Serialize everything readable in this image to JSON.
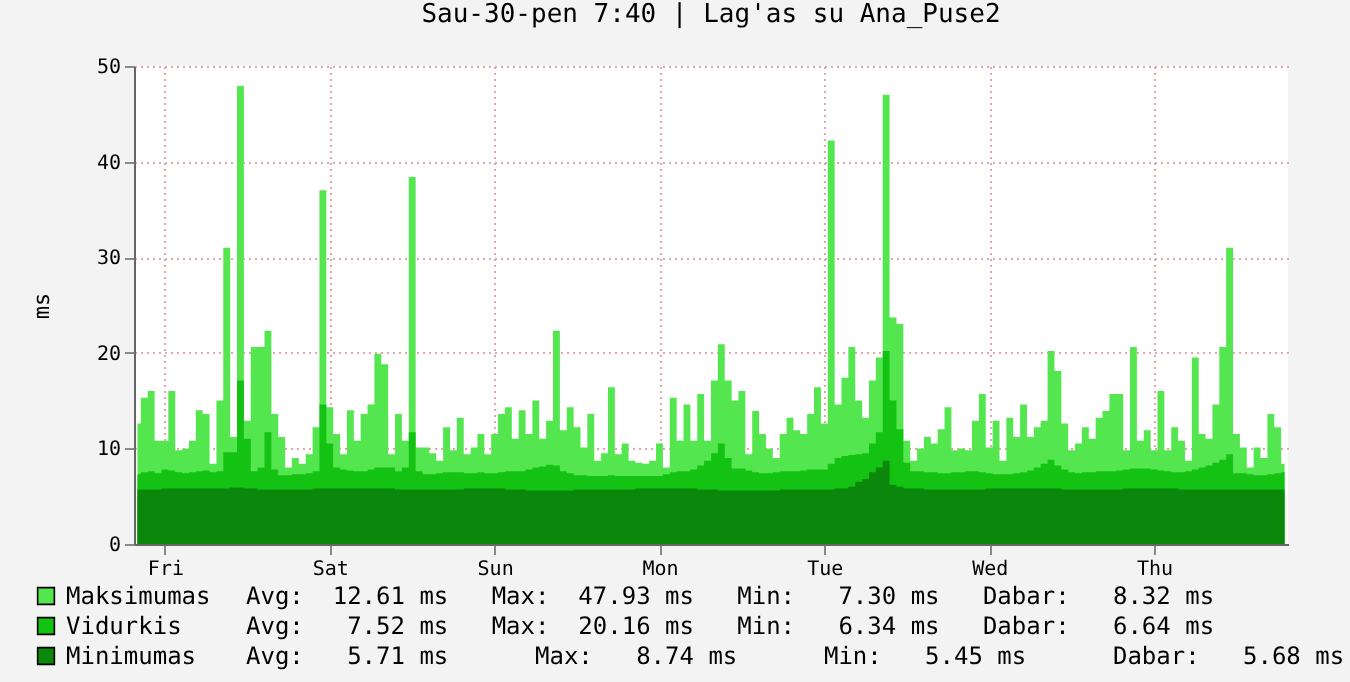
{
  "chart_data": {
    "type": "area",
    "title": "Sau-30-pen 7:40 | Lag'as su Ana_Puse2",
    "ylabel": "ms",
    "ylim": [
      0,
      50
    ],
    "yticks": [
      0,
      10,
      20,
      30,
      40,
      50
    ],
    "categories": [
      null,
      null,
      null,
      null,
      "Fri",
      null,
      null,
      null,
      null,
      null,
      null,
      null,
      null,
      null,
      null,
      null,
      null,
      null,
      null,
      null,
      null,
      null,
      null,
      null,
      null,
      null,
      null,
      null,
      "Sat",
      null,
      null,
      null,
      null,
      null,
      null,
      null,
      null,
      null,
      null,
      null,
      null,
      null,
      null,
      null,
      null,
      null,
      null,
      null,
      null,
      null,
      null,
      null,
      "Sun",
      null,
      null,
      null,
      null,
      null,
      null,
      null,
      null,
      null,
      null,
      null,
      null,
      null,
      null,
      null,
      null,
      null,
      null,
      null,
      null,
      null,
      null,
      null,
      "Mon",
      null,
      null,
      null,
      null,
      null,
      null,
      null,
      null,
      null,
      null,
      null,
      null,
      null,
      null,
      null,
      null,
      null,
      null,
      null,
      null,
      null,
      null,
      null,
      "Tue",
      null,
      null,
      null,
      null,
      null,
      null,
      null,
      null,
      null,
      null,
      null,
      null,
      null,
      null,
      null,
      null,
      null,
      null,
      null,
      null,
      null,
      null,
      null,
      "Wed",
      null,
      null,
      null,
      null,
      null,
      null,
      null,
      null,
      null,
      null,
      null,
      null,
      null,
      null,
      null,
      null,
      null,
      null,
      null,
      null,
      null,
      null,
      null,
      "Thu",
      null,
      null,
      null,
      null,
      null,
      null,
      null,
      null,
      null,
      null,
      null,
      null,
      null,
      null,
      null,
      null,
      null,
      null,
      null
    ],
    "grid": true,
    "legend": "bottom",
    "series": [
      {
        "name": "Maksimumas",
        "color": "#54e64e",
        "values": [
          12.6,
          15.3,
          16,
          10.8,
          10.8,
          16,
          9.8,
          10,
          10.8,
          14,
          13.6,
          8.4,
          15,
          31,
          11.2,
          47.9,
          12.9,
          20.6,
          20.6,
          22.3,
          13.6,
          11.2,
          8,
          9,
          8.4,
          9.4,
          12.2,
          37,
          14.3,
          11.5,
          9.4,
          14,
          10.8,
          13.6,
          14.6,
          19.9,
          18.8,
          9.4,
          13.6,
          10.8,
          38.4,
          10.1,
          10.1,
          9.5,
          8.7,
          12.2,
          9.8,
          13.2,
          9.4,
          10.1,
          11.5,
          9.4,
          11.5,
          13.6,
          14.3,
          11,
          14,
          11.5,
          15,
          11,
          12.9,
          22.3,
          11.9,
          14.3,
          12.2,
          10.1,
          13.6,
          8.7,
          9.5,
          16.4,
          9.4,
          10.5,
          8.7,
          8.5,
          8.4,
          8.7,
          10.5,
          8,
          15.3,
          10.8,
          14.6,
          10.8,
          15.7,
          10.8,
          17.1,
          20.9,
          17.1,
          15,
          16,
          9.4,
          13.9,
          11.5,
          10,
          9,
          11.5,
          13.2,
          11.9,
          11.5,
          13.6,
          16.4,
          12.6,
          42.2,
          14.6,
          17.4,
          20.6,
          15,
          13.2,
          17.1,
          19.5,
          47,
          23.7,
          23,
          10.8,
          8.7,
          10,
          11.2,
          10.5,
          12,
          14.3,
          9.8,
          10,
          9.8,
          12.9,
          15.7,
          10.1,
          12.9,
          8.7,
          13.2,
          11.2,
          14.6,
          11.2,
          12.2,
          12.9,
          20.2,
          18.1,
          12.6,
          9.8,
          10.5,
          12.2,
          11,
          13.2,
          13.9,
          15.7,
          15.7,
          9.8,
          20.6,
          10.8,
          11.9,
          9.8,
          16,
          9.8,
          12.2,
          10.8,
          8.7,
          19.5,
          11.5,
          11,
          14.6,
          20.6,
          31,
          11.5,
          10.1,
          8,
          10.1,
          9,
          13.6,
          12.2,
          8.4
        ]
      },
      {
        "name": "Vidurkis",
        "color": "#14c214",
        "values": [
          7.3,
          7.5,
          7.6,
          7.4,
          7.8,
          7.7,
          7.5,
          7.4,
          7.5,
          7.6,
          7.7,
          7.5,
          7.6,
          9.6,
          9.6,
          17.1,
          11,
          7.6,
          8,
          11.7,
          7.8,
          7.2,
          7.2,
          7.3,
          7.3,
          7.4,
          7.6,
          14.6,
          10.5,
          8,
          7.8,
          7.7,
          7.6,
          7.6,
          7.8,
          8,
          8,
          8,
          7.6,
          8,
          11.7,
          7.6,
          7.3,
          7.3,
          7.4,
          7.5,
          7.5,
          7.5,
          7.4,
          7.4,
          7.5,
          7.4,
          7.4,
          7.5,
          7.6,
          7.6,
          7.6,
          7.8,
          8,
          8.1,
          8.3,
          8.2,
          7.6,
          7.4,
          7.2,
          7.2,
          7.1,
          7.1,
          7.1,
          7.2,
          7.1,
          7.1,
          7.1,
          7.1,
          7.1,
          7.1,
          7.1,
          7.3,
          7.5,
          7.6,
          7.6,
          7.8,
          8.2,
          8.7,
          9.5,
          10.5,
          9,
          7.9,
          7.9,
          7.7,
          7.5,
          7.4,
          7.4,
          7.5,
          7.6,
          7.6,
          7.6,
          7.7,
          7.8,
          7.8,
          7.8,
          8.4,
          9,
          9.2,
          9.3,
          9.4,
          9.5,
          10.5,
          11.7,
          20.2,
          15,
          12,
          8.5,
          7.6,
          7.6,
          7.5,
          7.5,
          7.4,
          7.4,
          7.5,
          7.5,
          7.6,
          7.6,
          7.5,
          7.4,
          7.3,
          7.3,
          7.3,
          7.4,
          7.5,
          7.7,
          8,
          8.4,
          8.8,
          8.2,
          7.8,
          7.5,
          7.4,
          7.5,
          7.5,
          7.6,
          7.6,
          7.6,
          7.7,
          7.8,
          7.9,
          7.9,
          7.9,
          7.8,
          7.7,
          7.6,
          7.5,
          7.5,
          7.6,
          7.8,
          8,
          8.2,
          8.5,
          8.8,
          9.4,
          7.4,
          7.4,
          7.3,
          7.2,
          7.2,
          7.3,
          7.4,
          7.5
        ]
      },
      {
        "name": "Minimumas",
        "color": "#0b880b",
        "values": [
          5.7,
          5.7,
          5.7,
          5.7,
          5.8,
          5.8,
          5.8,
          5.8,
          5.8,
          5.8,
          5.8,
          5.8,
          5.8,
          5.8,
          5.9,
          5.9,
          5.8,
          5.8,
          5.7,
          5.7,
          5.7,
          5.7,
          5.7,
          5.7,
          5.7,
          5.7,
          5.8,
          5.8,
          5.8,
          5.8,
          5.8,
          5.8,
          5.8,
          5.8,
          5.8,
          5.8,
          5.8,
          5.8,
          5.7,
          5.7,
          5.7,
          5.7,
          5.7,
          5.7,
          5.7,
          5.7,
          5.7,
          5.7,
          5.8,
          5.8,
          5.8,
          5.8,
          5.8,
          5.8,
          5.7,
          5.7,
          5.7,
          5.6,
          5.6,
          5.6,
          5.6,
          5.6,
          5.6,
          5.6,
          5.7,
          5.7,
          5.7,
          5.7,
          5.7,
          5.7,
          5.7,
          5.7,
          5.7,
          5.8,
          5.8,
          5.8,
          5.8,
          5.8,
          5.8,
          5.8,
          5.8,
          5.8,
          5.7,
          5.7,
          5.7,
          5.6,
          5.6,
          5.6,
          5.6,
          5.6,
          5.6,
          5.6,
          5.6,
          5.6,
          5.7,
          5.7,
          5.7,
          5.7,
          5.7,
          5.7,
          5.7,
          5.7,
          5.8,
          5.8,
          6,
          6.5,
          6.8,
          7.5,
          8,
          8.7,
          6.2,
          6,
          5.8,
          5.8,
          5.8,
          5.7,
          5.7,
          5.7,
          5.7,
          5.7,
          5.7,
          5.7,
          5.7,
          5.7,
          5.8,
          5.8,
          5.8,
          5.8,
          5.8,
          5.8,
          5.8,
          5.8,
          5.8,
          5.8,
          5.8,
          5.7,
          5.7,
          5.7,
          5.7,
          5.7,
          5.7,
          5.7,
          5.7,
          5.7,
          5.8,
          5.8,
          5.8,
          5.8,
          5.8,
          5.8,
          5.8,
          5.8,
          5.7,
          5.7,
          5.7,
          5.7,
          5.7,
          5.7,
          5.7,
          5.7,
          5.7,
          5.7,
          5.7,
          5.7,
          5.7,
          5.7,
          5.7,
          5.7
        ]
      }
    ],
    "annotations": [
      "Avg:  12.61 ms   Max:  47.93 ms   Min:   7.30 ms   Dabar:   8.32 ms",
      "Avg:   7.52 ms   Max:  20.16 ms   Min:   6.34 ms   Dabar:   6.64 ms",
      "Avg:   5.71 ms      Max:   8.74 ms      Min:   5.45 ms      Dabar:   5.68 ms"
    ]
  }
}
